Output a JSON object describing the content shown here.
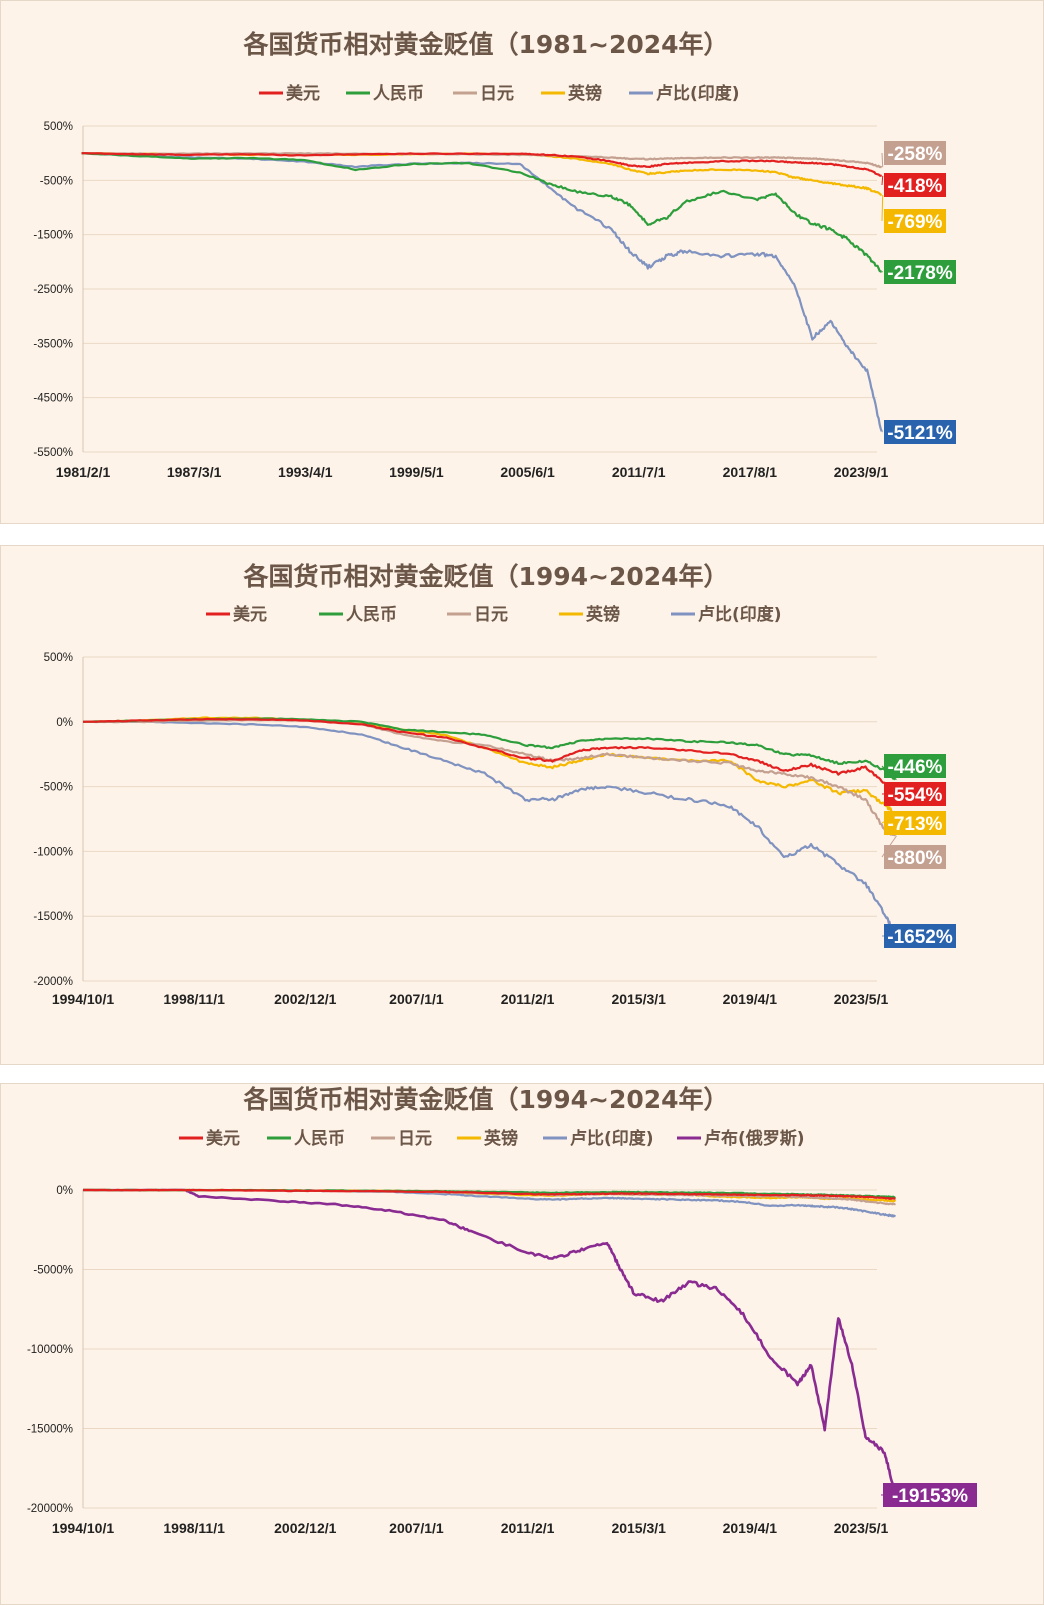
{
  "chart_data": [
    {
      "type": "line",
      "title": "各国货币相对黄金贬值（1981~2024年）",
      "x_ticks": [
        "1981/2/1",
        "1987/3/1",
        "1993/4/1",
        "1999/5/1",
        "2005/6/1",
        "2011/7/1",
        "2017/8/1",
        "2023/9/1"
      ],
      "y_ticks": [
        "500%",
        "-500%",
        "-1500%",
        "-2500%",
        "-3500%",
        "-4500%",
        "-5500%"
      ],
      "ylim": [
        -5500,
        500
      ],
      "x_years": [
        1981,
        1984,
        1987,
        1990,
        1993,
        1996,
        1999,
        2002,
        2005,
        2006.5,
        2008,
        2010,
        2011,
        2012,
        2013,
        2014,
        2016,
        2018,
        2019,
        2020,
        2021,
        2022,
        2023,
        2024,
        2024.8
      ],
      "legend_position": "top",
      "grid": "horizontal",
      "series": [
        {
          "name": "美元",
          "color": "#e32020",
          "end_label": "-418%",
          "values": [
            0,
            -20,
            -30,
            -20,
            -40,
            -20,
            -10,
            -10,
            -10,
            -30,
            -60,
            -150,
            -230,
            -250,
            -200,
            -180,
            -150,
            -140,
            -150,
            -170,
            -180,
            -200,
            -250,
            -300,
            -418
          ]
        },
        {
          "name": "人民币",
          "color": "#2e9e3c",
          "end_label": "-2178%",
          "values": [
            0,
            -50,
            -100,
            -90,
            -120,
            -300,
            -200,
            -180,
            -350,
            -550,
            -700,
            -800,
            -950,
            -1300,
            -1200,
            -900,
            -700,
            -850,
            -750,
            -1100,
            -1300,
            -1400,
            -1600,
            -1900,
            -2178
          ]
        },
        {
          "name": "日元",
          "color": "#c4a091",
          "end_label": "-258%",
          "values": [
            0,
            -10,
            -10,
            -5,
            -5,
            -10,
            -15,
            -20,
            -30,
            -40,
            -60,
            -80,
            -100,
            -110,
            -100,
            -90,
            -80,
            -80,
            -80,
            -90,
            -100,
            -120,
            -150,
            -180,
            -258
          ]
        },
        {
          "name": "英镑",
          "color": "#f5b800",
          "end_label": "-769%",
          "values": [
            0,
            -10,
            -20,
            -30,
            -20,
            -30,
            -20,
            -10,
            -20,
            -50,
            -100,
            -200,
            -300,
            -380,
            -350,
            -320,
            -300,
            -320,
            -350,
            -450,
            -500,
            -550,
            -600,
            -650,
            -769
          ]
        },
        {
          "name": "卢比(印度)",
          "color": "#7f92c0",
          "end_label": "-5121%",
          "values": [
            0,
            -50,
            -80,
            -100,
            -150,
            -250,
            -200,
            -180,
            -200,
            -600,
            -1000,
            -1400,
            -1800,
            -2100,
            -1900,
            -1800,
            -1900,
            -1850,
            -1900,
            -2400,
            -3400,
            -3100,
            -3600,
            -4000,
            -5121
          ]
        }
      ]
    },
    {
      "type": "line",
      "title": "各国货币相对黄金贬值（1994~2024年）",
      "x_ticks": [
        "1994/10/1",
        "1998/11/1",
        "2002/12/1",
        "2007/1/1",
        "2011/2/1",
        "2015/3/1",
        "2019/4/1",
        "2023/5/1"
      ],
      "y_ticks": [
        "500%",
        "0%",
        "-500%",
        "-1000%",
        "-1500%",
        "-2000%"
      ],
      "ylim": [
        -2000,
        500
      ],
      "x_years": [
        1994.75,
        1997,
        1999,
        2001,
        2003,
        2005,
        2006.5,
        2008,
        2009.5,
        2011,
        2012,
        2013,
        2014,
        2015.5,
        2017,
        2018.5,
        2019.5,
        2020.5,
        2021.5,
        2022.5,
        2023.5,
        2024.25,
        2024.6
      ],
      "legend_position": "top",
      "grid": "horizontal",
      "series": [
        {
          "name": "美元",
          "color": "#e32020",
          "end_label": "-554%",
          "values": [
            0,
            10,
            20,
            20,
            10,
            -20,
            -80,
            -120,
            -200,
            -280,
            -300,
            -220,
            -200,
            -200,
            -220,
            -250,
            -300,
            -380,
            -330,
            -400,
            -350,
            -480,
            -554
          ]
        },
        {
          "name": "人民币",
          "color": "#2e9e3c",
          "end_label": "-446%",
          "values": [
            0,
            10,
            20,
            25,
            20,
            0,
            -60,
            -80,
            -100,
            -180,
            -200,
            -150,
            -130,
            -130,
            -150,
            -160,
            -180,
            -250,
            -260,
            -320,
            -300,
            -380,
            -446
          ]
        },
        {
          "name": "日元",
          "color": "#c4a091",
          "end_label": "-880%",
          "values": [
            0,
            0,
            10,
            15,
            10,
            -20,
            -100,
            -150,
            -180,
            -250,
            -300,
            -280,
            -250,
            -280,
            -300,
            -320,
            -380,
            -400,
            -430,
            -500,
            -600,
            -850,
            -880
          ]
        },
        {
          "name": "英镑",
          "color": "#f5b800",
          "end_label": "-713%",
          "values": [
            0,
            10,
            30,
            30,
            15,
            -10,
            -60,
            -100,
            -200,
            -320,
            -350,
            -300,
            -250,
            -280,
            -300,
            -300,
            -450,
            -500,
            -450,
            -550,
            -530,
            -650,
            -713
          ]
        },
        {
          "name": "卢比(印度)",
          "color": "#7f92c0",
          "end_label": "-1652%",
          "values": [
            0,
            0,
            -10,
            -20,
            -40,
            -100,
            -200,
            -300,
            -400,
            -600,
            -600,
            -520,
            -500,
            -550,
            -600,
            -650,
            -800,
            -1050,
            -950,
            -1100,
            -1250,
            -1500,
            -1652
          ]
        }
      ]
    },
    {
      "type": "line",
      "title": "各国货币相对黄金贬值（1994~2024年）",
      "x_ticks": [
        "1994/10/1",
        "1998/11/1",
        "2002/12/1",
        "2007/1/1",
        "2011/2/1",
        "2015/3/1",
        "2019/4/1",
        "2023/5/1"
      ],
      "y_ticks": [
        "0%",
        "-5000%",
        "-10000%",
        "-15000%",
        "-20000%"
      ],
      "ylim": [
        -20000,
        0
      ],
      "x_years": [
        1994.75,
        1997,
        1998.5,
        1999,
        2002,
        2004,
        2006,
        2008,
        2009,
        2011,
        2012,
        2013,
        2014,
        2014.5,
        2015,
        2016,
        2017,
        2018,
        2019,
        2020,
        2021,
        2021.5,
        2022,
        2022.5,
        2023,
        2023.5,
        2024.2,
        2024.6
      ],
      "legend_position": "top",
      "grid": "horizontal",
      "series": [
        {
          "name": "美元",
          "color": "#e32020",
          "end_label": "",
          "values": [
            0,
            0,
            0,
            0,
            -50,
            -60,
            -80,
            -120,
            -160,
            -250,
            -280,
            -250,
            -230,
            -220,
            -220,
            -240,
            -260,
            -280,
            -300,
            -330,
            -320,
            -340,
            -360,
            -380,
            -400,
            -430,
            -500,
            -554
          ]
        },
        {
          "name": "人民币",
          "color": "#2e9e3c",
          "end_label": "",
          "values": [
            0,
            0,
            0,
            0,
            -20,
            -40,
            -60,
            -80,
            -100,
            -150,
            -170,
            -150,
            -130,
            -130,
            -130,
            -150,
            -160,
            -180,
            -200,
            -250,
            -260,
            -290,
            -300,
            -330,
            -350,
            -380,
            -420,
            -446
          ]
        },
        {
          "name": "日元",
          "color": "#c4a091",
          "end_label": "",
          "values": [
            0,
            0,
            0,
            0,
            -30,
            -50,
            -80,
            -150,
            -180,
            -250,
            -300,
            -280,
            -250,
            -260,
            -280,
            -300,
            -320,
            -350,
            -380,
            -400,
            -430,
            -470,
            -500,
            -550,
            -600,
            -700,
            -850,
            -880
          ]
        },
        {
          "name": "英镑",
          "color": "#f5b800",
          "end_label": "",
          "values": [
            0,
            0,
            0,
            0,
            -20,
            -40,
            -60,
            -100,
            -200,
            -320,
            -350,
            -300,
            -250,
            -260,
            -280,
            -300,
            -300,
            -400,
            -450,
            -500,
            -450,
            -480,
            -550,
            -550,
            -530,
            -600,
            -650,
            -713
          ]
        },
        {
          "name": "卢比(印度)",
          "color": "#7f92c0",
          "end_label": "",
          "values": [
            0,
            0,
            0,
            0,
            -30,
            -60,
            -120,
            -250,
            -350,
            -550,
            -600,
            -550,
            -500,
            -520,
            -550,
            -580,
            -620,
            -650,
            -750,
            -1000,
            -950,
            -1000,
            -1050,
            -1100,
            -1200,
            -1350,
            -1550,
            -1652
          ]
        },
        {
          "name": "卢布(俄罗斯)",
          "color": "#8a2b92",
          "end_label": "-19153%",
          "values": [
            0,
            0,
            0,
            -400,
            -700,
            -900,
            -1300,
            -1900,
            -2600,
            -3900,
            -4300,
            -3800,
            -3300,
            -5000,
            -6500,
            -7000,
            -5800,
            -6200,
            -7800,
            -10500,
            -12200,
            -11000,
            -15000,
            -8000,
            -11000,
            -15500,
            -16500,
            -19153
          ]
        }
      ]
    }
  ]
}
